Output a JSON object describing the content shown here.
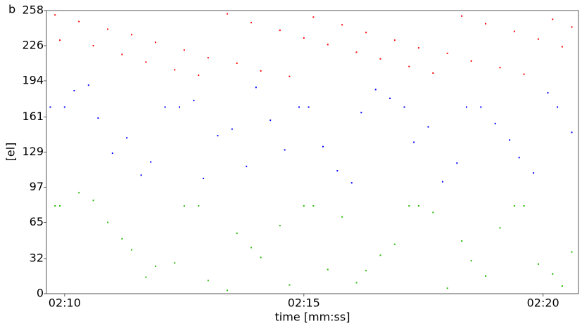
{
  "chart_data": {
    "type": "scatter",
    "panel_label": "b",
    "x_label": "time [mm:ss]",
    "y_label": "[el]",
    "xlim": [
      129.62,
      140.74
    ],
    "ylim": [
      0,
      258
    ],
    "xticks": [
      {
        "value": 130,
        "label": "02:10"
      },
      {
        "value": 135,
        "label": "02:15"
      },
      {
        "value": 140,
        "label": "02:20"
      }
    ],
    "yticks": [
      0,
      32,
      65,
      97,
      129,
      161,
      194,
      226,
      258
    ],
    "series": [
      {
        "color": "#ff0000",
        "x": [
          129.8,
          130.3,
          130.9,
          131.4,
          131.9,
          132.5,
          133.0,
          133.6,
          134.1,
          134.7,
          135.2,
          135.8,
          136.3,
          136.9,
          137.4,
          138.0,
          138.5,
          139.1,
          139.6,
          140.2,
          140.6,
          129.9,
          130.6,
          131.2,
          131.7,
          132.3,
          132.8,
          133.4,
          133.9,
          134.5,
          135.0,
          135.5,
          136.1,
          136.6,
          137.2,
          137.7,
          138.3,
          138.8,
          139.4,
          139.9,
          140.4
        ],
        "values": [
          254,
          248,
          241,
          236,
          229,
          222,
          215,
          210,
          203,
          198,
          252,
          245,
          238,
          231,
          224,
          219,
          212,
          206,
          200,
          250,
          243,
          231,
          226,
          218,
          211,
          204,
          199,
          255,
          247,
          240,
          233,
          227,
          220,
          214,
          207,
          201,
          253,
          246,
          239,
          232,
          225
        ]
      },
      {
        "color": "#0000ff",
        "x": [
          129.7,
          130.2,
          130.7,
          131.3,
          131.8,
          132.4,
          132.9,
          133.5,
          134.0,
          134.6,
          135.1,
          135.7,
          136.2,
          136.8,
          137.3,
          137.9,
          138.4,
          139.0,
          139.5,
          140.1,
          140.6,
          130.0,
          130.5,
          131.0,
          131.6,
          132.1,
          132.7,
          133.2,
          133.8,
          134.3,
          134.9,
          135.4,
          136.0,
          136.5,
          137.1,
          137.6,
          138.2,
          138.7,
          139.3,
          139.8,
          140.3
        ],
        "values": [
          170,
          185,
          160,
          142,
          120,
          170,
          105,
          150,
          188,
          131,
          170,
          112,
          165,
          178,
          138,
          102,
          170,
          155,
          124,
          183,
          147,
          170,
          190,
          128,
          108,
          170,
          176,
          144,
          116,
          158,
          170,
          134,
          101,
          186,
          170,
          152,
          119,
          170,
          140,
          110,
          170
        ]
      },
      {
        "color": "#22bb00",
        "x": [
          129.8,
          130.3,
          130.9,
          131.4,
          131.9,
          132.5,
          133.0,
          133.6,
          134.1,
          134.7,
          135.2,
          135.8,
          136.3,
          136.9,
          137.4,
          138.0,
          138.5,
          139.1,
          139.6,
          140.2,
          140.6,
          129.9,
          130.6,
          131.2,
          131.7,
          132.3,
          132.8,
          133.4,
          133.9,
          134.5,
          135.0,
          135.5,
          136.1,
          136.6,
          137.2,
          137.7,
          138.3,
          138.8,
          139.4,
          139.9,
          140.4
        ],
        "values": [
          80,
          92,
          65,
          40,
          25,
          80,
          12,
          55,
          33,
          8,
          80,
          70,
          21,
          45,
          80,
          5,
          30,
          60,
          80,
          18,
          38,
          80,
          85,
          50,
          15,
          28,
          80,
          3,
          42,
          62,
          80,
          22,
          10,
          35,
          80,
          74,
          48,
          16,
          80,
          27,
          7
        ]
      }
    ]
  }
}
